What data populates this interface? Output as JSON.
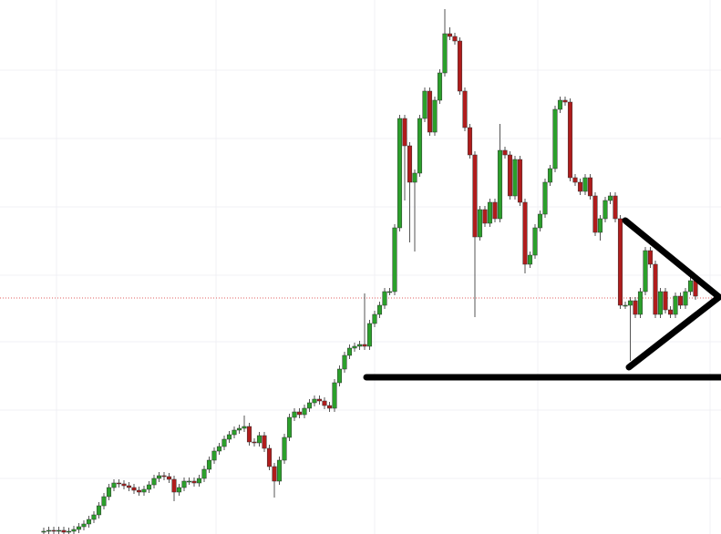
{
  "chart_data": {
    "type": "candlestick",
    "up_color": "#2ba02b",
    "down_color": "#b01c1c",
    "ylim": [
      0,
      586
    ],
    "open": [
      3,
      3,
      4,
      3,
      4,
      2,
      3,
      5,
      8,
      11,
      16,
      21,
      31,
      41,
      51,
      56,
      55,
      53,
      51,
      48,
      46,
      49,
      54,
      61,
      64,
      63,
      60,
      46,
      51,
      58,
      58,
      56,
      61,
      71,
      81,
      91,
      96,
      104,
      109,
      114,
      116,
      118,
      101,
      100,
      108,
      94,
      74,
      58,
      81,
      106,
      128,
      134,
      131,
      138,
      144,
      148,
      146,
      141,
      138,
      166,
      181,
      196,
      204,
      206,
      208,
      206,
      231,
      241,
      251,
      266,
      266,
      336,
      456,
      426,
      386,
      396,
      456,
      486,
      441,
      476,
      506,
      549,
      546,
      541,
      486,
      446,
      416,
      326,
      356,
      341,
      364,
      346,
      421,
      416,
      371,
      411,
      364,
      296,
      306,
      336,
      351,
      386,
      401,
      466,
      476,
      474,
      391,
      386,
      376,
      391,
      371,
      331,
      346,
      366,
      371,
      346,
      251,
      251,
      256,
      241,
      266,
      311,
      296,
      241,
      266,
      246,
      241,
      261,
      251,
      266,
      278
    ],
    "high": [
      7,
      8,
      8,
      8,
      8,
      7,
      9,
      12,
      15,
      20,
      25,
      35,
      45,
      55,
      60,
      60,
      59,
      57,
      55,
      52,
      53,
      58,
      65,
      68,
      68,
      67,
      64,
      55,
      62,
      62,
      62,
      65,
      75,
      85,
      95,
      100,
      108,
      113,
      118,
      120,
      130,
      122,
      105,
      112,
      112,
      98,
      78,
      85,
      110,
      132,
      138,
      138,
      142,
      148,
      152,
      152,
      150,
      145,
      170,
      185,
      200,
      208,
      210,
      212,
      264,
      235,
      245,
      255,
      270,
      270,
      340,
      460,
      460,
      430,
      400,
      460,
      490,
      490,
      480,
      510,
      576,
      556,
      550,
      545,
      490,
      450,
      420,
      360,
      360,
      368,
      368,
      450,
      425,
      420,
      415,
      415,
      368,
      310,
      340,
      355,
      390,
      405,
      470,
      480,
      480,
      478,
      395,
      390,
      395,
      395,
      375,
      350,
      370,
      375,
      375,
      350,
      255,
      260,
      260,
      270,
      315,
      315,
      300,
      270,
      270,
      250,
      265,
      265,
      270,
      282,
      282
    ],
    "low": [
      0,
      0,
      0,
      0,
      0,
      0,
      0,
      1,
      4,
      7,
      12,
      17,
      27,
      37,
      47,
      51,
      49,
      47,
      44,
      42,
      42,
      45,
      50,
      57,
      59,
      56,
      36,
      42,
      47,
      54,
      52,
      52,
      57,
      67,
      77,
      87,
      92,
      100,
      105,
      110,
      112,
      97,
      96,
      96,
      90,
      70,
      40,
      54,
      77,
      102,
      124,
      127,
      127,
      134,
      140,
      142,
      137,
      134,
      134,
      162,
      177,
      192,
      200,
      202,
      202,
      202,
      227,
      237,
      247,
      262,
      262,
      332,
      366,
      320,
      310,
      392,
      452,
      437,
      437,
      472,
      502,
      542,
      537,
      482,
      442,
      412,
      238,
      322,
      337,
      337,
      342,
      342,
      412,
      367,
      367,
      360,
      286,
      292,
      302,
      332,
      347,
      382,
      397,
      462,
      470,
      387,
      382,
      372,
      372,
      367,
      327,
      322,
      342,
      362,
      342,
      247,
      247,
      190,
      237,
      237,
      262,
      292,
      237,
      237,
      242,
      237,
      237,
      247,
      247,
      262,
      257
    ],
    "close": [
      3,
      4,
      3,
      4,
      2,
      3,
      5,
      8,
      11,
      16,
      21,
      31,
      41,
      51,
      56,
      55,
      53,
      51,
      48,
      46,
      49,
      54,
      61,
      64,
      63,
      60,
      46,
      51,
      58,
      58,
      56,
      61,
      71,
      81,
      91,
      96,
      104,
      109,
      114,
      116,
      118,
      101,
      100,
      108,
      94,
      74,
      58,
      81,
      106,
      128,
      134,
      131,
      138,
      144,
      148,
      146,
      141,
      138,
      166,
      181,
      196,
      204,
      206,
      208,
      206,
      231,
      241,
      251,
      266,
      266,
      336,
      456,
      426,
      386,
      396,
      456,
      486,
      441,
      476,
      506,
      549,
      546,
      541,
      486,
      446,
      416,
      326,
      356,
      341,
      364,
      346,
      421,
      416,
      371,
      411,
      364,
      296,
      306,
      336,
      351,
      386,
      401,
      466,
      476,
      474,
      391,
      386,
      376,
      391,
      371,
      331,
      346,
      366,
      371,
      346,
      251,
      251,
      256,
      241,
      266,
      311,
      296,
      241,
      266,
      246,
      241,
      261,
      251,
      266,
      278,
      261
    ]
  }
}
